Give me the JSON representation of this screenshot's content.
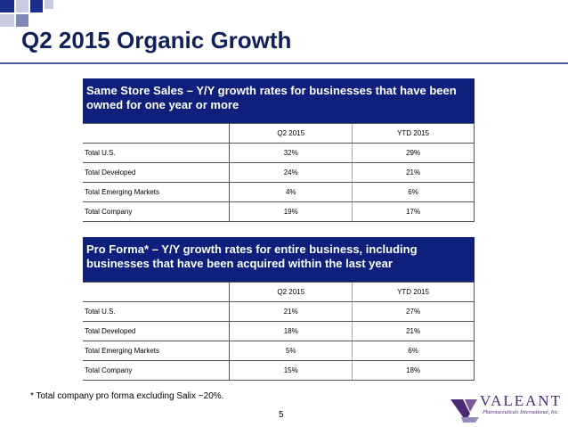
{
  "slide": {
    "title": "Q2 2015 Organic Growth",
    "page_number": "5",
    "footnote": "* Total company pro forma excluding Salix ~20%."
  },
  "same_store": {
    "header": "Same Store Sales – Y/Y growth rates for businesses that have been owned for one year or more",
    "columns": [
      "Q2 2015",
      "YTD 2015"
    ],
    "rows": [
      {
        "label": "Total U.S.",
        "q2": "32%",
        "ytd": "29%"
      },
      {
        "label": "Total Developed",
        "q2": "24%",
        "ytd": "21%"
      },
      {
        "label": "Total Emerging Markets",
        "q2": "4%",
        "ytd": "6%"
      },
      {
        "label": "Total Company",
        "q2": "19%",
        "ytd": "17%"
      }
    ]
  },
  "pro_forma": {
    "header": "Pro Forma* – Y/Y growth rates for entire business, including businesses that have been acquired within the last year",
    "columns": [
      "Q2 2015",
      "YTD 2015"
    ],
    "rows": [
      {
        "label": "Total U.S.",
        "q2": "21%",
        "ytd": "27%"
      },
      {
        "label": "Total Developed",
        "q2": "18%",
        "ytd": "21%"
      },
      {
        "label": "Total Emerging Markets",
        "q2": "5%",
        "ytd": "6%"
      },
      {
        "label": "Total Company",
        "q2": "15%",
        "ytd": "18%"
      }
    ]
  },
  "logo": {
    "word": "VALEANT",
    "sub": "Pharmaceuticals International, Inc.",
    "color": "#4a2a72"
  },
  "colors": {
    "header_bg": "#0e1f7c",
    "title": "#10205a",
    "accent_rule": "#4a5aa0"
  }
}
